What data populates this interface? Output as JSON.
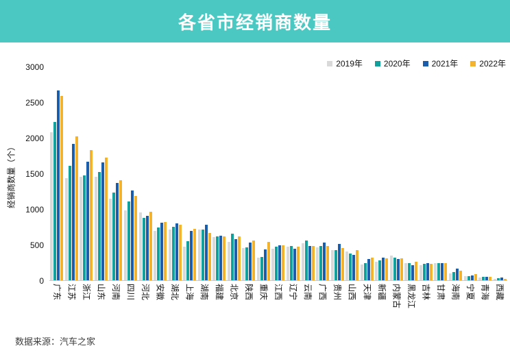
{
  "banner": {
    "title": "各省市经销商数量",
    "bg_color": "#4CC8C2",
    "text_color": "#ffffff"
  },
  "source_note": "数据来源：汽车之家",
  "chart_data": {
    "type": "bar",
    "title": "各省市经销商数量",
    "xlabel": "",
    "ylabel": "经销商数量（个）",
    "ylim": [
      0,
      3000
    ],
    "yticks": [
      0,
      500,
      1000,
      1500,
      2000,
      2500,
      3000
    ],
    "grid": false,
    "legend_position": "top-right",
    "axis_line_color": "#c9c9c9",
    "categories": [
      "广东",
      "江苏",
      "浙江",
      "山东",
      "河南",
      "四川",
      "河北",
      "安徽",
      "湖北",
      "上海",
      "湖南",
      "福建",
      "北京",
      "陕西",
      "重庆",
      "江西",
      "辽宁",
      "云南",
      "广西",
      "贵州",
      "山西",
      "天津",
      "新疆",
      "内蒙古",
      "黑龙江",
      "吉林",
      "甘肃",
      "海南",
      "宁夏",
      "青海",
      "西藏"
    ],
    "series": [
      {
        "name": "2019年",
        "color": "#d9d9d9",
        "values": [
          2080,
          1435,
          1455,
          1455,
          1145,
          985,
          950,
          690,
          710,
          470,
          710,
          610,
          535,
          450,
          320,
          445,
          470,
          520,
          465,
          420,
          400,
          225,
          260,
          345,
          245,
          215,
          245,
          100,
          55,
          40,
          15
        ]
      },
      {
        "name": "2020年",
        "color": "#12a09d",
        "values": [
          2225,
          1605,
          1475,
          1515,
          1235,
          1110,
          875,
          740,
          750,
          545,
          715,
          615,
          650,
          465,
          325,
          475,
          480,
          555,
          480,
          425,
          375,
          240,
          280,
          315,
          245,
          235,
          240,
          120,
          60,
          50,
          30
        ]
      },
      {
        "name": "2021年",
        "color": "#1c5dab",
        "values": [
          2665,
          1910,
          1665,
          1650,
          1365,
          1255,
          905,
          805,
          795,
          690,
          775,
          625,
          580,
          525,
          435,
          490,
          445,
          480,
          530,
          505,
          355,
          295,
          315,
          295,
          215,
          245,
          245,
          160,
          70,
          50,
          35
        ]
      },
      {
        "name": "2022年",
        "color": "#f3b32f",
        "values": [
          2590,
          2020,
          1830,
          1720,
          1400,
          1185,
          960,
          815,
          775,
          725,
          665,
          620,
          615,
          555,
          535,
          490,
          470,
          480,
          485,
          450,
          420,
          315,
          305,
          310,
          255,
          235,
          245,
          135,
          85,
          48,
          18
        ]
      }
    ]
  }
}
